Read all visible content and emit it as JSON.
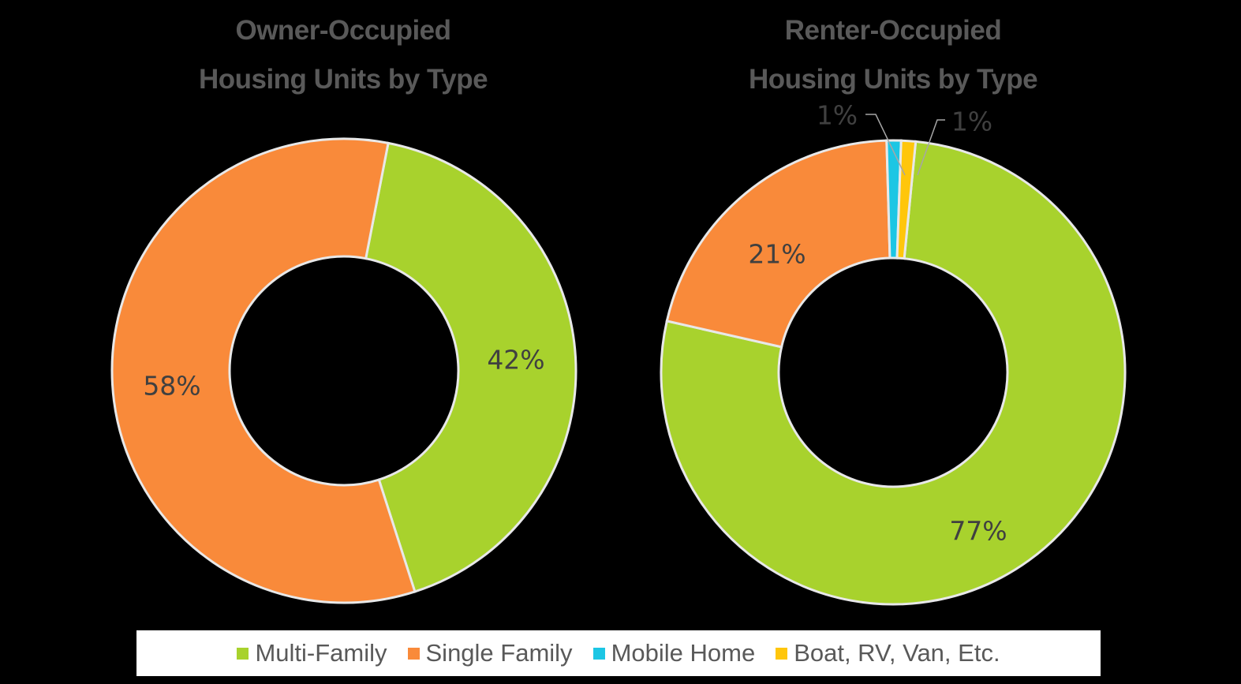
{
  "chart_data": [
    {
      "type": "donut",
      "title": "Owner-Occupied\nHousing Units by Type",
      "series": [
        {
          "name": "Multi-Family",
          "value": 42,
          "label": "42%"
        },
        {
          "name": "Single Family",
          "value": 58,
          "label": "58%"
        }
      ]
    },
    {
      "type": "donut",
      "title": "Renter-Occupied\nHousing Units by Type",
      "series": [
        {
          "name": "Multi-Family",
          "value": 77,
          "label": "77%"
        },
        {
          "name": "Single Family",
          "value": 21,
          "label": "21%"
        },
        {
          "name": "Mobile Home",
          "value": 1,
          "label": "1%"
        },
        {
          "name": "Boat, RV, Van, Etc.",
          "value": 1,
          "label": "1%"
        }
      ]
    }
  ],
  "legend": [
    {
      "label": "Multi-Family",
      "color": "#A8D22D"
    },
    {
      "label": "Single Family",
      "color": "#F98A3A"
    },
    {
      "label": "Mobile Home",
      "color": "#1CC6E4"
    },
    {
      "label": "Boat, RV, Van, Etc.",
      "color": "#FFC60B"
    }
  ],
  "colors": {
    "Multi-Family": "#A8D22D",
    "Single Family": "#F98A3A",
    "Mobile Home": "#1CC6E4",
    "Boat, RV, Van, Etc.": "#FFC60B",
    "separator": "#E8E8E8",
    "label_text": "#404040",
    "title_text": "#595959"
  },
  "legend_position": "bottom"
}
